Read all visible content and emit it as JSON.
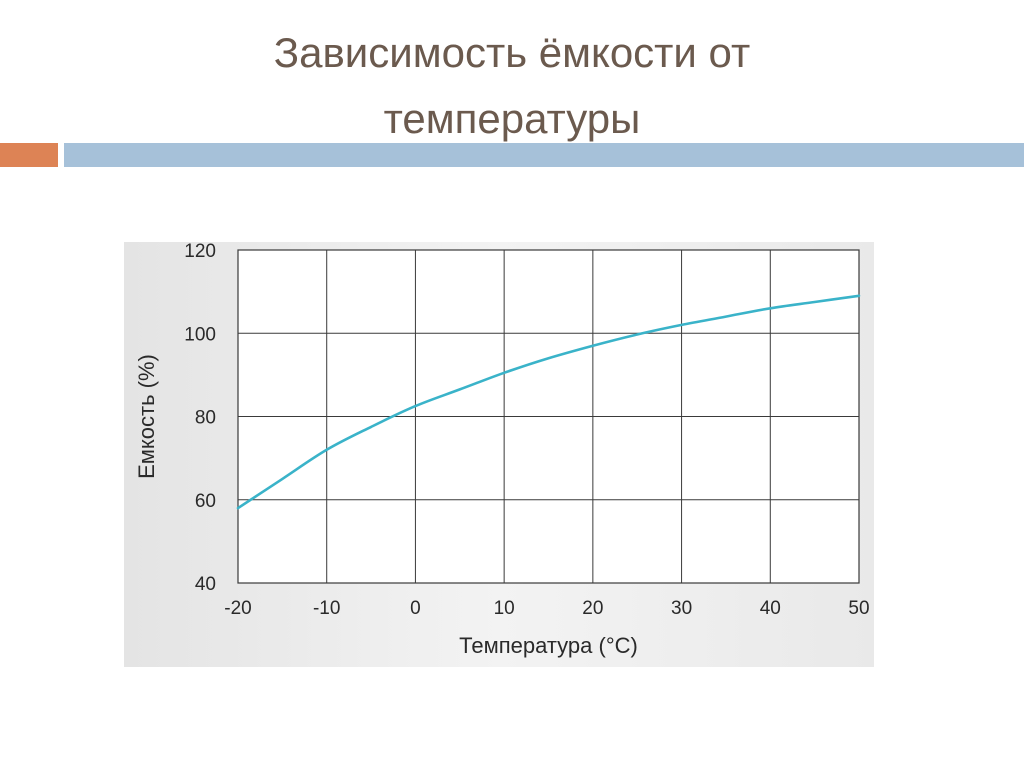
{
  "slide": {
    "title_line1": "Зависимость ёмкости от",
    "title_line2": "температуры",
    "title_color": "#6b5a4e",
    "accent_orange": "#dd8355",
    "accent_blue": "#a6c1d9"
  },
  "chart_data": {
    "type": "line",
    "title": "",
    "xlabel": "Температура (°C)",
    "ylabel": "Емкость (%)",
    "xlim": [
      -20,
      50
    ],
    "ylim": [
      40,
      120
    ],
    "x_ticks": [
      -20,
      -10,
      0,
      10,
      20,
      30,
      40,
      50
    ],
    "y_ticks": [
      40,
      60,
      80,
      100,
      120
    ],
    "grid": true,
    "line_color": "#3ab3c9",
    "series": [
      {
        "x": [
          -20,
          -15,
          -10,
          -5,
          0,
          5,
          10,
          15,
          20,
          25,
          30,
          35,
          40,
          45,
          50
        ],
        "values": [
          58,
          65,
          72,
          77.5,
          82.5,
          86.5,
          90.5,
          94,
          97,
          99.7,
          102,
          104,
          106,
          107.5,
          109
        ]
      }
    ]
  }
}
